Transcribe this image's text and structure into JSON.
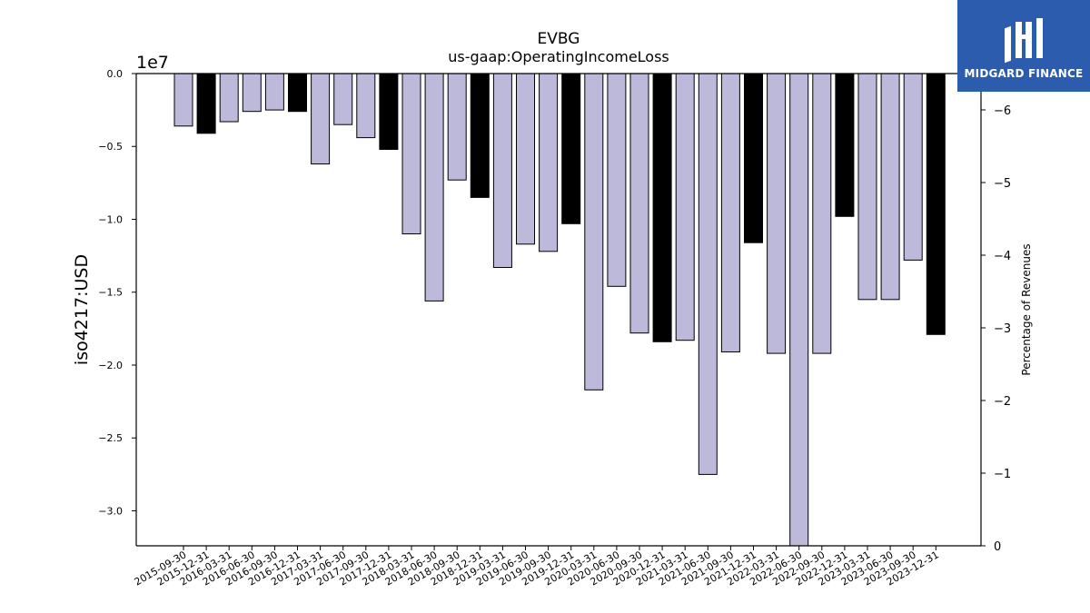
{
  "chart_data": {
    "type": "bar",
    "title": "EVBG",
    "subtitle": "us-gaap:OperatingIncomeLoss",
    "ylabel": "iso4217:USD",
    "y_offset_label": "1e7",
    "y2label": "Percentage of Revenues",
    "ylim": [
      -3.24,
      0.0
    ],
    "y2lim": [
      0,
      -6.5
    ],
    "y_ticks": [
      "0.0",
      "−0.5",
      "−1.0",
      "−1.5",
      "−2.0",
      "−2.5",
      "−3.0"
    ],
    "y_tick_values": [
      0.0,
      -0.5,
      -1.0,
      -1.5,
      -2.0,
      -2.5,
      -3.0
    ],
    "y2_ticks": [
      "0",
      "−1",
      "−2",
      "−3",
      "−4",
      "−5",
      "−6"
    ],
    "y2_tick_values": [
      0,
      -1,
      -2,
      -3,
      -4,
      -5,
      -6
    ],
    "grid": false,
    "legend": "none",
    "categories": [
      "2015-09-30",
      "2015-12-31",
      "2016-03-31",
      "2016-06-30",
      "2016-09-30",
      "2016-12-31",
      "2017-03-31",
      "2017-06-30",
      "2017-09-30",
      "2017-12-31",
      "2018-03-31",
      "2018-06-30",
      "2018-09-30",
      "2018-12-31",
      "2019-03-31",
      "2019-06-30",
      "2019-09-30",
      "2019-12-31",
      "2020-03-31",
      "2020-06-30",
      "2020-09-30",
      "2020-12-31",
      "2021-03-31",
      "2021-06-30",
      "2021-09-30",
      "2021-12-31",
      "2022-03-31",
      "2022-06-30",
      "2022-09-30",
      "2022-12-31",
      "2023-03-31",
      "2023-06-30",
      "2023-09-30",
      "2023-12-31"
    ],
    "values": [
      -0.36,
      -0.41,
      -0.33,
      -0.26,
      -0.25,
      -0.26,
      -0.62,
      -0.35,
      -0.44,
      -0.52,
      -1.1,
      -1.56,
      -0.73,
      -0.85,
      -1.33,
      -1.17,
      -1.22,
      -1.03,
      -2.17,
      -1.46,
      -1.78,
      -1.84,
      -1.83,
      -2.75,
      -1.91,
      -1.16,
      -1.92,
      -3.24,
      -1.92,
      -0.98,
      -1.55,
      -1.55,
      -1.28,
      -1.79
    ],
    "highlight": [
      false,
      true,
      false,
      false,
      false,
      true,
      false,
      false,
      false,
      true,
      false,
      false,
      false,
      true,
      false,
      false,
      false,
      true,
      false,
      false,
      false,
      true,
      false,
      false,
      false,
      true,
      false,
      false,
      false,
      true,
      false,
      false,
      false,
      true
    ],
    "colors": {
      "bar": "#bcb9da",
      "highlight": "#000000",
      "edge": "#000000",
      "logo_bg": "#2b5cae"
    }
  },
  "logo": {
    "text": "MIDGARD FINANCE",
    "icon": "midgard-logo-icon"
  }
}
